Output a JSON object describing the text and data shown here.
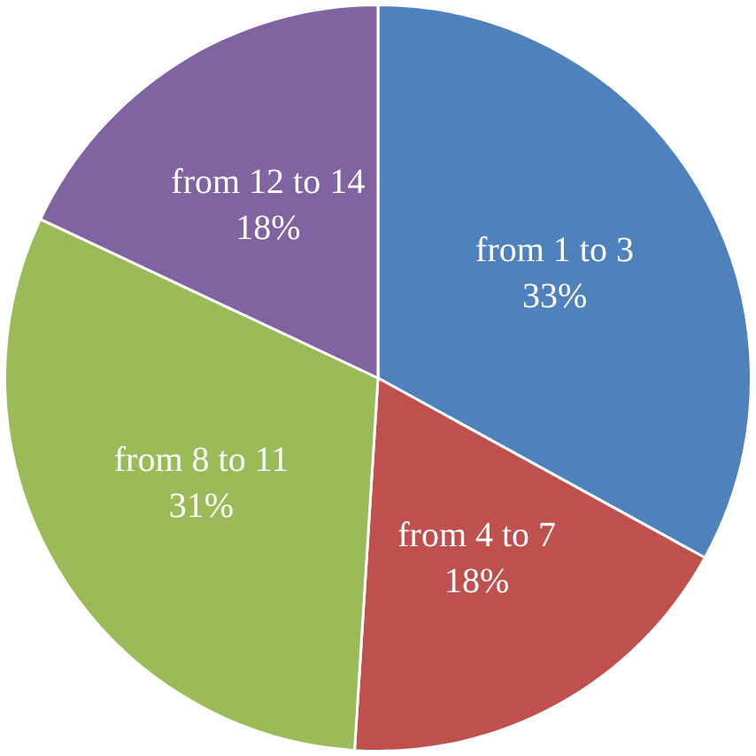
{
  "chart_data": {
    "type": "pie",
    "categories": [
      "from 1 to 3",
      "from 4 to 7",
      "from 8 to 11",
      "from 12 to 14"
    ],
    "values": [
      33,
      18,
      31,
      18
    ],
    "value_labels": [
      "33%",
      "18%",
      "31%",
      "18%"
    ],
    "colors": [
      "#4f81bd",
      "#c0504d",
      "#9bbb59",
      "#8064a2"
    ],
    "legend": false
  }
}
